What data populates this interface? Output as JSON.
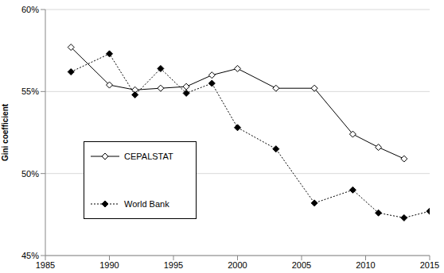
{
  "chart_data": {
    "type": "line",
    "y_label": "Gini coefficient",
    "xlim": [
      1985,
      2015
    ],
    "xticks": [
      1985,
      1990,
      1995,
      2000,
      2005,
      2010,
      2015
    ],
    "ylim": [
      45,
      60
    ],
    "yticks": [
      {
        "value": 45,
        "label": "45%"
      },
      {
        "value": 50,
        "label": "50%"
      },
      {
        "value": 55,
        "label": "55%"
      },
      {
        "value": 60,
        "label": "60%"
      }
    ],
    "grid": true,
    "legend": "lower left",
    "series": [
      {
        "name": "CEPALSTAT",
        "color": "#000000",
        "marker": "open_diamond",
        "line_style": "solid",
        "x": [
          1987,
          1990,
          1992,
          1994,
          1996,
          1998,
          2000,
          2003,
          2006,
          2009,
          2011,
          2013
        ],
        "values": [
          57.7,
          55.4,
          55.1,
          55.2,
          55.3,
          56.0,
          56.4,
          55.2,
          55.2,
          52.4,
          51.6,
          50.9
        ]
      },
      {
        "name": "World Bank",
        "color": "#000000",
        "marker": "diamond",
        "line_style": "dotted",
        "x": [
          1987,
          1990,
          1992,
          1994,
          1996,
          1998,
          2000,
          2003,
          2006,
          2009,
          2011,
          2013,
          2015
        ],
        "values": [
          56.2,
          57.3,
          54.8,
          56.4,
          54.9,
          55.5,
          52.8,
          51.5,
          48.2,
          49.0,
          47.6,
          47.3,
          47.7
        ]
      }
    ]
  }
}
